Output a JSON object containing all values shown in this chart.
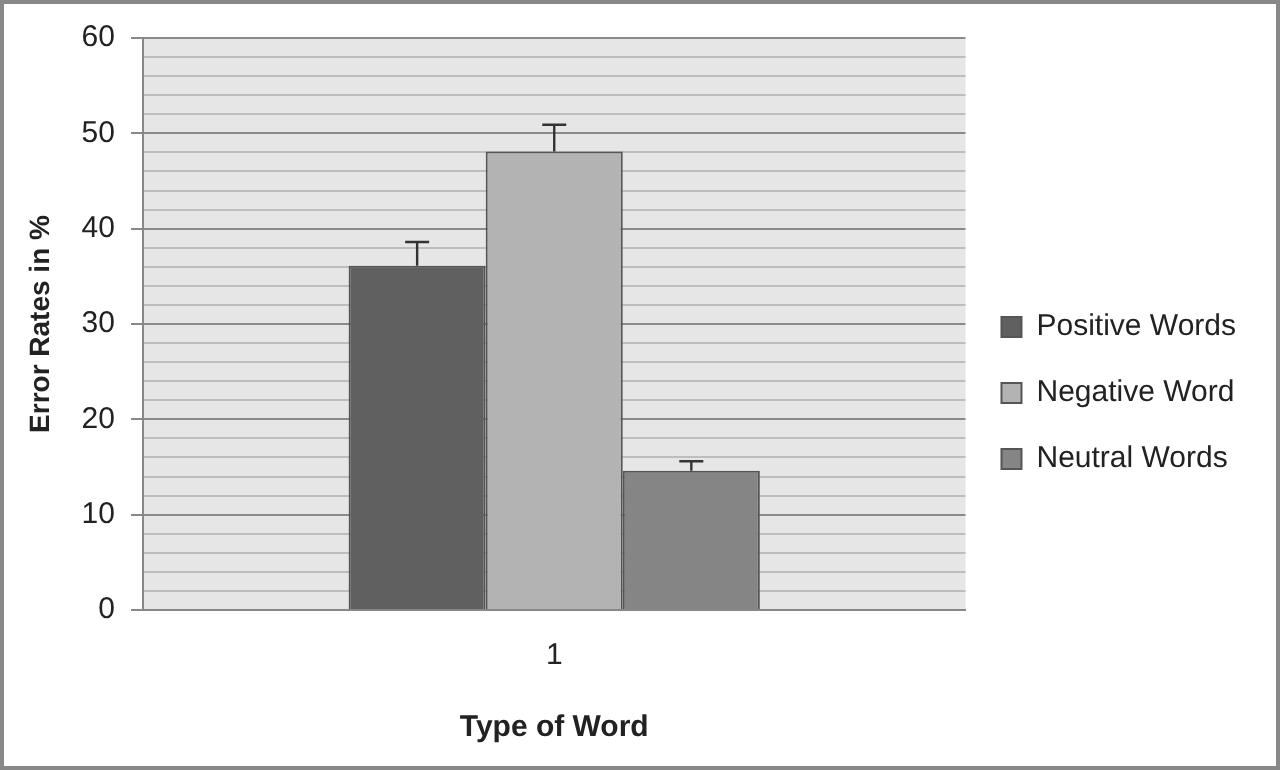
{
  "chart_data": {
    "type": "bar",
    "xlabel": "Type of Word",
    "ylabel": "Error Rates in %",
    "categories": [
      "1"
    ],
    "series": [
      {
        "name": "Positive Words",
        "color": "#606060",
        "values": [
          36.1
        ],
        "errors": [
          [
            36.1,
            38.6
          ]
        ]
      },
      {
        "name": "Negative Word",
        "color": "#b3b3b3",
        "values": [
          48.1
        ],
        "errors": [
          [
            48.1,
            50.9
          ]
        ]
      },
      {
        "name": "Neutral Words",
        "color": "#858585",
        "values": [
          14.6
        ],
        "errors": [
          [
            14.6,
            15.6
          ]
        ]
      }
    ],
    "ylim": [
      0,
      60
    ],
    "yticks": [
      0,
      {
        "value": 2,
        "label": null
      },
      {
        "value": 4,
        "label": null
      },
      {
        "value": 6,
        "label": null
      },
      {
        "value": 8,
        "label": null
      },
      10,
      {
        "value": 12,
        "label": null
      },
      {
        "value": 14,
        "label": null
      },
      {
        "value": 16,
        "label": null
      },
      {
        "value": 18,
        "label": null
      },
      20,
      {
        "value": 22,
        "label": null
      },
      {
        "value": 24,
        "label": null
      },
      {
        "value": 26,
        "label": null
      },
      {
        "value": 28,
        "label": null
      },
      30,
      {
        "value": 32,
        "label": null
      },
      {
        "value": 34,
        "label": null
      },
      {
        "value": 36,
        "label": null
      },
      {
        "value": 38,
        "label": null
      },
      40,
      {
        "value": 42,
        "label": null
      },
      {
        "value": 44,
        "label": null
      },
      {
        "value": 46,
        "label": null
      },
      {
        "value": 48,
        "label": null
      },
      50,
      {
        "value": 52,
        "label": null
      },
      {
        "value": 54,
        "label": null
      },
      {
        "value": 56,
        "label": null
      },
      {
        "value": 58,
        "label": null
      },
      60
    ],
    "grid": "y",
    "legend": "right"
  }
}
